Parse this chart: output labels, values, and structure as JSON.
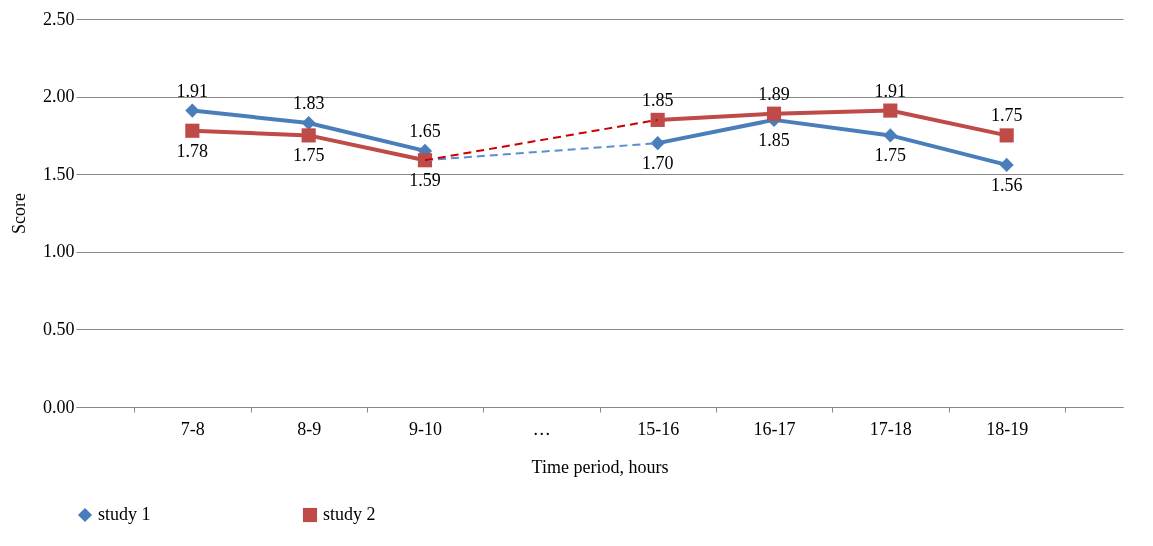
{
  "chart_data": {
    "type": "line",
    "xlabel": "Time period, hours",
    "ylabel": "Score",
    "categories": [
      "7-8",
      "8-9",
      "9-10",
      "…",
      "15-16",
      "16-17",
      "17-18",
      "18-19"
    ],
    "series": [
      {
        "name": "study 1",
        "color": "#4a7ebb",
        "marker": "diamond",
        "values": [
          1.91,
          1.83,
          1.65,
          null,
          1.7,
          1.85,
          1.75,
          1.56
        ],
        "value_labels": [
          "1.91",
          "1.83",
          "1.65",
          null,
          "1.70",
          "1.85",
          "1.75",
          "1.56"
        ]
      },
      {
        "name": "study 2",
        "color": "#be4b48",
        "marker": "square",
        "values": [
          1.78,
          1.75,
          1.59,
          null,
          1.85,
          1.89,
          1.91,
          1.75
        ],
        "value_labels": [
          "1.78",
          "1.75",
          "1.59",
          null,
          "1.85",
          "1.89",
          "1.91",
          "1.75"
        ]
      },
      {
        "color": "#5b8ed0",
        "marker": "none",
        "line_style": "dashed",
        "values": [
          null,
          null,
          1.59,
          null,
          1.7,
          null,
          null,
          null
        ]
      },
      {
        "color": "#cc0000",
        "marker": "none",
        "line_style": "dashed",
        "values": [
          null,
          null,
          1.59,
          null,
          1.85,
          null,
          null,
          null
        ]
      }
    ],
    "ylim": [
      0,
      2.5
    ],
    "yticks": [
      {
        "value": 0,
        "label": "0.00"
      },
      {
        "value": 0.5,
        "label": "0.50"
      },
      {
        "value": 1,
        "label": "1.00"
      },
      {
        "value": 1.5,
        "label": "1.50"
      },
      {
        "value": 2,
        "label": "2.00"
      },
      {
        "value": 2.5,
        "label": "2.50"
      }
    ],
    "grid": "y",
    "legend": "bottom"
  }
}
